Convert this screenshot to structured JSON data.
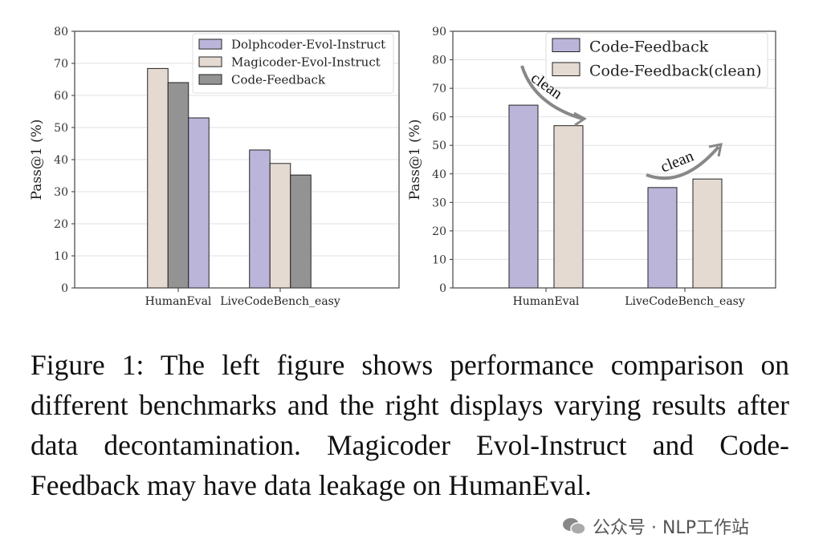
{
  "chart_data": [
    {
      "type": "bar",
      "title": "",
      "xlabel": "",
      "ylabel": "Pass@1 (%)",
      "ylim": [
        0,
        80
      ],
      "yticks": [
        0,
        10,
        20,
        30,
        40,
        50,
        60,
        70,
        80
      ],
      "categories": [
        "HumanEval",
        "LiveCodeBench_easy"
      ],
      "series": [
        {
          "name": "Dolphcoder-Evol-Instruct",
          "values": [
            53.0,
            43.0
          ],
          "color": "#bcb5da"
        },
        {
          "name": "Magicoder-Evol-Instruct",
          "values": [
            68.4,
            38.8
          ],
          "color": "#e5dad1"
        },
        {
          "name": "Code-Feedback",
          "values": [
            64.0,
            35.2
          ],
          "color": "#939393"
        }
      ],
      "bar_order": [
        [
          1,
          2,
          0
        ],
        [
          0,
          1,
          2
        ]
      ],
      "legend": "top-right",
      "grid": true
    },
    {
      "type": "bar",
      "title": "",
      "xlabel": "",
      "ylabel": "Pass@1 (%)",
      "ylim": [
        0,
        90
      ],
      "yticks": [
        0,
        10,
        20,
        30,
        40,
        50,
        60,
        70,
        80,
        90
      ],
      "categories": [
        "HumanEval",
        "LiveCodeBench_easy"
      ],
      "series": [
        {
          "name": "Code-Feedback",
          "values": [
            64.1,
            35.2
          ],
          "color": "#bcb5da"
        },
        {
          "name": "Code-Feedback(clean)",
          "values": [
            56.9,
            38.2
          ],
          "color": "#e5dad1"
        }
      ],
      "annotations": [
        "clean",
        "clean"
      ],
      "legend": "top-right",
      "grid": true
    }
  ],
  "caption": "Figure 1: The left figure shows performance comparison on different benchmarks and the right displays varying results after data decontamination.  Magicoder Evol-Instruct and Code-Feedback may have data leakage on HumanEval.",
  "watermark": "公众号 · NLP工作站"
}
